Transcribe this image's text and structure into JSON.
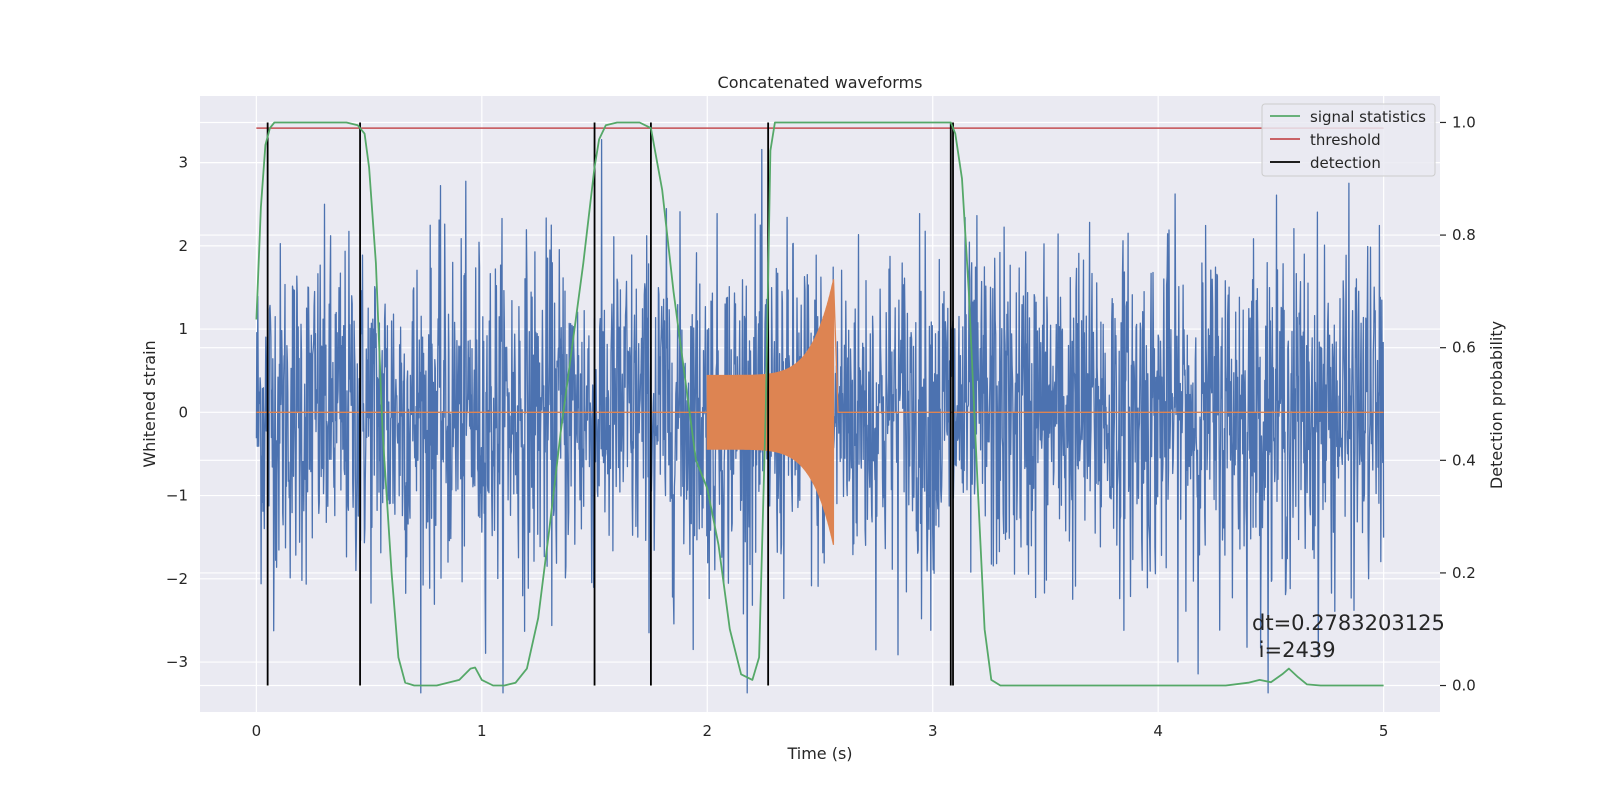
{
  "chart_data": {
    "type": "line",
    "title": "Concatenated waveforms",
    "xlabel": "Time (s)",
    "ylabel": "Whitened strain",
    "y2label": "Detection probability",
    "xlim": [
      -0.25,
      5.25
    ],
    "ylim": [
      -3.6,
      3.8
    ],
    "y2lim": [
      -0.047,
      1.047
    ],
    "grid": true,
    "legend_position": "top-right",
    "x_ticks": [
      0,
      1,
      2,
      3,
      4,
      5
    ],
    "x_tick_labels": [
      "0",
      "1",
      "2",
      "3",
      "4",
      "5"
    ],
    "y_ticks": [
      -3,
      -2,
      -1,
      0,
      1,
      2,
      3
    ],
    "y_tick_labels": [
      "−3",
      "−2",
      "−1",
      "0",
      "1",
      "2",
      "3"
    ],
    "y2_ticks": [
      0.0,
      0.2,
      0.4,
      0.6,
      0.8,
      1.0
    ],
    "y2_tick_labels": [
      "0.0",
      "0.2",
      "0.4",
      "0.6",
      "0.8",
      "1.0"
    ],
    "colors": {
      "background": "#eaeaf2",
      "grid": "#ffffff",
      "strain": "#4c72b0",
      "injection": "#dd8452",
      "signal_statistics": "#55a868",
      "threshold": "#c44e52",
      "detection": "#000000"
    },
    "series": [
      {
        "name": "",
        "axis": "left",
        "kind": "noise",
        "x_range": [
          0,
          5
        ],
        "amplitude_typical": 1.0,
        "amplitude_max": 3.37
      },
      {
        "name": "",
        "axis": "left",
        "kind": "chirp",
        "x_range": [
          2.0,
          2.56
        ],
        "amplitude_start": 0.45,
        "amplitude_peak": 1.6,
        "flat_value": 0.0
      },
      {
        "name": "signal statistics",
        "axis": "right",
        "x": [
          0.0,
          0.02,
          0.04,
          0.06,
          0.08,
          0.1,
          0.15,
          0.2,
          0.3,
          0.4,
          0.45,
          0.48,
          0.5,
          0.53,
          0.56,
          0.6,
          0.63,
          0.66,
          0.7,
          0.8,
          0.9,
          0.95,
          0.97,
          1.0,
          1.05,
          1.1,
          1.15,
          1.2,
          1.25,
          1.3,
          1.35,
          1.4,
          1.45,
          1.5,
          1.52,
          1.55,
          1.6,
          1.7,
          1.75,
          1.8,
          1.85,
          1.9,
          1.95,
          2.0,
          2.05,
          2.1,
          2.15,
          2.2,
          2.23,
          2.26,
          2.28,
          2.3,
          2.4,
          2.6,
          2.8,
          3.0,
          3.08,
          3.1,
          3.13,
          3.16,
          3.2,
          3.23,
          3.26,
          3.3,
          3.5,
          4.0,
          4.3,
          4.4,
          4.45,
          4.5,
          4.55,
          4.58,
          4.62,
          4.66,
          4.72,
          4.8,
          5.0
        ],
        "values": [
          0.65,
          0.85,
          0.96,
          0.99,
          1.0,
          1.0,
          1.0,
          1.0,
          1.0,
          1.0,
          0.995,
          0.98,
          0.92,
          0.75,
          0.45,
          0.2,
          0.05,
          0.005,
          0.0,
          0.0,
          0.01,
          0.03,
          0.032,
          0.01,
          0.0,
          0.0,
          0.005,
          0.03,
          0.12,
          0.28,
          0.45,
          0.6,
          0.75,
          0.92,
          0.97,
          0.995,
          1.0,
          1.0,
          0.99,
          0.88,
          0.7,
          0.55,
          0.4,
          0.35,
          0.25,
          0.1,
          0.02,
          0.01,
          0.05,
          0.5,
          0.95,
          1.0,
          1.0,
          1.0,
          1.0,
          1.0,
          1.0,
          0.98,
          0.9,
          0.7,
          0.35,
          0.1,
          0.01,
          0.0,
          0.0,
          0.0,
          0.0,
          0.005,
          0.01,
          0.006,
          0.02,
          0.03,
          0.015,
          0.002,
          0.0,
          0.0,
          0.0
        ]
      },
      {
        "name": "threshold",
        "axis": "right",
        "x": [
          0,
          5
        ],
        "values": [
          0.99,
          0.99
        ]
      },
      {
        "name": "detection",
        "axis": "right",
        "kind": "vertical_lines",
        "x": [
          0.05,
          0.46,
          1.5,
          1.75,
          2.27,
          3.08,
          3.09
        ],
        "y_from": 0.0,
        "y_to": 1.0
      }
    ],
    "legend": [
      "signal statistics",
      "threshold",
      "detection"
    ],
    "annotations": {
      "dt_text": "dt=0.2783203125",
      "i_text": " i=2439"
    }
  }
}
